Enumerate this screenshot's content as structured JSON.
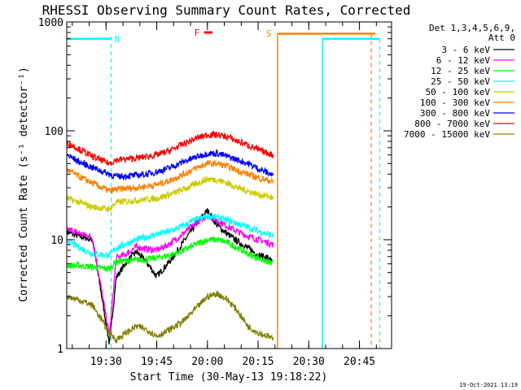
{
  "chart_data": {
    "type": "line",
    "title": "RHESSI Observing Summary Count Rates, Corrected",
    "xlabel": "Start Time (30-May-13 19:18:22)",
    "ylabel": "Corrected Count Rate (s⁻¹ detector⁻¹)",
    "y_scale": "log",
    "ylim": [
      1,
      1000
    ],
    "xlim": [
      "19:18:22",
      "20:54:30"
    ],
    "x_ticks": [
      "19:30",
      "19:45",
      "20:00",
      "20:15",
      "20:30",
      "20:45"
    ],
    "y_ticks": [
      1,
      10,
      100,
      1000
    ],
    "legend_header": [
      "Det 1,3,4,5,6,9,",
      "Att 0"
    ],
    "legend_placement": "right",
    "series": [
      {
        "name": "3 - 6 keV",
        "color": "#000000",
        "x": [
          "19:18:22",
          "19:22",
          "19:26",
          "19:31",
          "19:33",
          "19:36",
          "19:39",
          "19:42",
          "19:45",
          "19:49",
          "19:53",
          "19:57",
          "20:00",
          "20:03",
          "20:06",
          "20:09",
          "20:12",
          "20:15",
          "20:18",
          "20:19:30"
        ],
        "y": [
          11.8,
          10.8,
          10,
          1.1,
          4.5,
          6.2,
          7.8,
          6.2,
          4.6,
          6.4,
          9.6,
          14.5,
          18.5,
          13.5,
          11.2,
          9.6,
          8.4,
          7.2,
          6.8,
          6.0
        ]
      },
      {
        "name": "6 - 12 keV",
        "color": "#ff00ff",
        "x": [
          "19:18:22",
          "19:22",
          "19:26",
          "19:31",
          "19:33",
          "19:36",
          "19:39",
          "19:42",
          "19:45",
          "19:49",
          "19:53",
          "19:57",
          "20:00",
          "20:03",
          "20:06",
          "20:09",
          "20:12",
          "20:15",
          "20:18",
          "20:19:30"
        ],
        "y": [
          12.5,
          11.5,
          10.5,
          1.3,
          6.8,
          7.4,
          8.6,
          8.2,
          8.0,
          9.2,
          11.5,
          14.5,
          16.5,
          15.0,
          13.2,
          11.8,
          10.8,
          10.0,
          9.4,
          9.0
        ]
      },
      {
        "name": "12 - 25 keV",
        "color": "#00ff00",
        "x": [
          "19:18:22",
          "19:22",
          "19:26",
          "19:31",
          "19:33",
          "19:36",
          "19:39",
          "19:42",
          "19:45",
          "19:49",
          "19:53",
          "19:57",
          "20:00",
          "20:03",
          "20:06",
          "20:09",
          "20:12",
          "20:15",
          "20:18",
          "20:19:30"
        ],
        "y": [
          5.8,
          5.8,
          5.6,
          5.4,
          6.3,
          6.4,
          6.5,
          6.6,
          6.8,
          7.2,
          8.0,
          9.2,
          10.0,
          10.0,
          9.4,
          8.4,
          7.4,
          6.8,
          6.2,
          6.0
        ]
      },
      {
        "name": "25 - 50 keV",
        "color": "#00ffff",
        "x": [
          "19:18:22",
          "19:22",
          "19:26",
          "19:31",
          "19:33",
          "19:36",
          "19:39",
          "19:42",
          "19:45",
          "19:49",
          "19:53",
          "19:57",
          "20:00",
          "20:03",
          "20:06",
          "20:09",
          "20:12",
          "20:15",
          "20:18",
          "20:19:30"
        ],
        "y": [
          10,
          8.5,
          7.4,
          7.2,
          8.4,
          9.2,
          10.0,
          10.6,
          11.2,
          12.0,
          13.5,
          15.5,
          16.5,
          16.0,
          15.0,
          14.0,
          13.0,
          12.0,
          11.2,
          10.8
        ]
      },
      {
        "name": "50 - 100 keV",
        "color": "#cccc00",
        "x": [
          "19:18:22",
          "19:22",
          "19:26",
          "19:31",
          "19:33",
          "19:36",
          "19:39",
          "19:42",
          "19:45",
          "19:49",
          "19:53",
          "19:57",
          "20:00",
          "20:03",
          "20:06",
          "20:09",
          "20:12",
          "20:15",
          "20:18",
          "20:19:30"
        ],
        "y": [
          24,
          22,
          20,
          19,
          22,
          22.5,
          23,
          23.5,
          24,
          26,
          29,
          33,
          36,
          35.5,
          33,
          30,
          28,
          26,
          25,
          24
        ]
      },
      {
        "name": "100 - 300 keV",
        "color": "#ff8000",
        "x": [
          "19:18:22",
          "19:22",
          "19:26",
          "19:31",
          "19:33",
          "19:36",
          "19:39",
          "19:42",
          "19:45",
          "19:49",
          "19:53",
          "19:57",
          "20:00",
          "20:03",
          "20:06",
          "20:09",
          "20:12",
          "20:15",
          "20:18",
          "20:19:30"
        ],
        "y": [
          44,
          38,
          33,
          28,
          29,
          29.5,
          30,
          31,
          32,
          35,
          40,
          46,
          50,
          50,
          47,
          43,
          40,
          37,
          35,
          34
        ]
      },
      {
        "name": "300 - 800 keV",
        "color": "#0000ff",
        "x": [
          "19:18:22",
          "19:22",
          "19:26",
          "19:31",
          "19:33",
          "19:36",
          "19:39",
          "19:42",
          "19:45",
          "19:49",
          "19:53",
          "19:57",
          "20:00",
          "20:03",
          "20:06",
          "20:09",
          "20:12",
          "20:15",
          "20:18",
          "20:19:30"
        ],
        "y": [
          60,
          52,
          46,
          40,
          38,
          38.5,
          39,
          40,
          42,
          46,
          52,
          58,
          62,
          62,
          58,
          54,
          50,
          45,
          41,
          39
        ]
      },
      {
        "name": "800 - 7000 keV",
        "color": "#ff0000",
        "x": [
          "19:18:22",
          "19:22",
          "19:26",
          "19:31",
          "19:33",
          "19:36",
          "19:39",
          "19:42",
          "19:45",
          "19:49",
          "19:53",
          "19:57",
          "20:00",
          "20:03",
          "20:06",
          "20:09",
          "20:12",
          "20:15",
          "20:18",
          "20:19:30"
        ],
        "y": [
          78,
          68,
          58,
          50,
          54,
          55,
          56,
          58,
          60,
          66,
          76,
          86,
          92,
          92,
          88,
          80,
          74,
          67,
          62,
          60
        ]
      },
      {
        "name": "7000 - 15000 keV",
        "color": "#808000",
        "x": [
          "19:18:22",
          "19:22",
          "19:26",
          "19:31",
          "19:33",
          "19:36",
          "19:39",
          "19:42",
          "19:45",
          "19:49",
          "19:53",
          "19:57",
          "20:00",
          "20:03",
          "20:06",
          "20:09",
          "20:12",
          "20:15",
          "20:18",
          "20:19:30"
        ],
        "y": [
          3.0,
          2.8,
          2.5,
          1.4,
          1.2,
          1.4,
          1.6,
          1.5,
          1.3,
          1.5,
          1.8,
          2.4,
          3.0,
          3.2,
          2.8,
          2.2,
          1.6,
          1.4,
          1.3,
          1.2
        ]
      }
    ],
    "annotations": [
      {
        "label": "N",
        "color": "#00ffff",
        "at": "19:31:30"
      },
      {
        "label": "S",
        "color": "#ff8000",
        "at": "20:20:45"
      },
      {
        "label": "F",
        "color": "#ff0000",
        "from": "19:59:00",
        "to": "20:01:30",
        "level": 800
      }
    ],
    "timestamp": "19-Oct-2021 13:19"
  }
}
